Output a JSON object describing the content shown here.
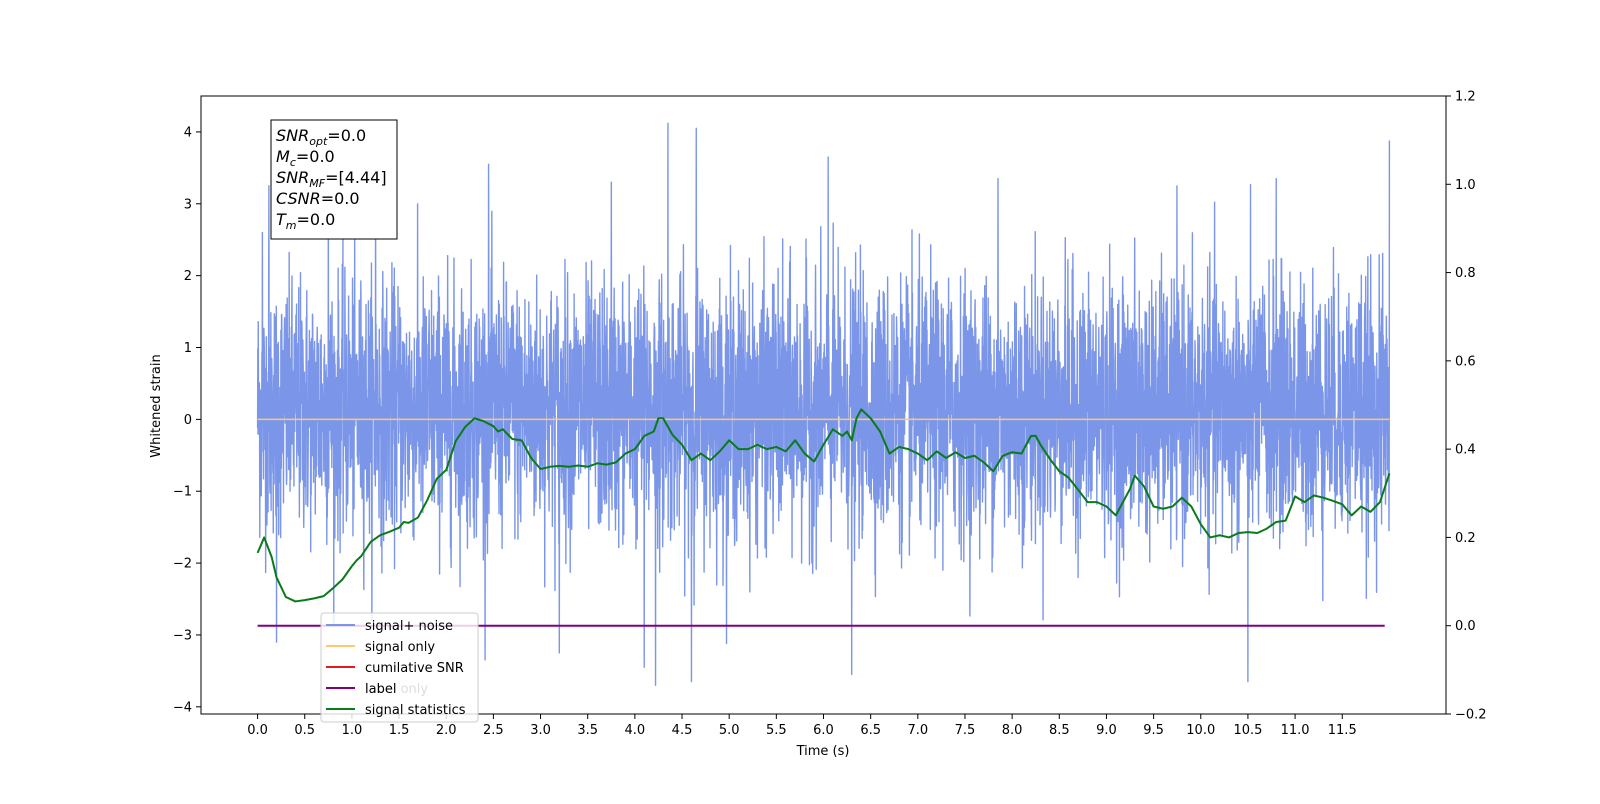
{
  "chart_data": {
    "type": "line",
    "xlabel": "Time (s)",
    "ylabel": "Whitened strain",
    "xlim": [
      -0.6,
      12.6
    ],
    "ylim": [
      -4.1,
      4.5
    ],
    "y2lim": [
      -0.2,
      1.2
    ],
    "x_ticks": [
      0.0,
      0.5,
      1.0,
      1.5,
      2.0,
      2.5,
      3.0,
      3.5,
      4.0,
      4.5,
      5.0,
      5.5,
      6.0,
      6.5,
      7.0,
      7.5,
      8.0,
      8.5,
      9.0,
      9.5,
      10.0,
      10.5,
      11.0,
      11.5
    ],
    "x_tick_labels": [
      "0.0",
      "0.5",
      "1.0",
      "1.5",
      "2.0",
      "2.5",
      "3.0",
      "3.5",
      "4.0",
      "4.5",
      "5.0",
      "5.5",
      "6.0",
      "6.5",
      "7.0",
      "7.5",
      "8.0",
      "8.5",
      "9.0",
      "9.5",
      "10.0",
      "10.5",
      "11.0",
      "11.5"
    ],
    "y_ticks": [
      -4,
      -3,
      -2,
      -1,
      0,
      1,
      2,
      3,
      4
    ],
    "y_tick_labels": [
      "−4",
      "−3",
      "−2",
      "−1",
      "0",
      "1",
      "2",
      "3",
      "4"
    ],
    "y2_ticks": [
      -0.2,
      0.0,
      0.2,
      0.4,
      0.6,
      0.8,
      1.0,
      1.2
    ],
    "y2_tick_labels": [
      "−0.2",
      "0.0",
      "0.2",
      "0.4",
      "0.6",
      "0.8",
      "1.0",
      "1.2"
    ],
    "grid": false,
    "legend_placement": "lower-left",
    "legend": [
      {
        "label": "signal+ noise",
        "color": "#7b96e8"
      },
      {
        "label": "signal only",
        "color": "#ffc870"
      },
      {
        "label": "cumilative SNR",
        "color": "#e41a1c"
      },
      {
        "label": "label",
        "color": "#800080"
      },
      {
        "label": "signal statistics",
        "color": "#0a7a1a"
      }
    ],
    "legend_overlap_text": "label only",
    "annotation_box": [
      {
        "name": "SNR",
        "sub": "opt",
        "value": "=0.0"
      },
      {
        "name": "M",
        "sub": "c",
        "value": "=0.0"
      },
      {
        "name": "SNR",
        "sub": "MF",
        "value": "=[4.44]"
      },
      {
        "name": "CSNR",
        "sub": "",
        "value": "=0.0"
      },
      {
        "name": "T",
        "sub": "m",
        "value": "=0.0"
      }
    ],
    "series": [
      {
        "name": "signal+ noise",
        "axis": "left",
        "color": "#7b96e8",
        "x_range": [
          0.0,
          12.0
        ],
        "amplitude_envelope": {
          "typical_min": -2.0,
          "typical_max": 2.0,
          "peak_max": 4.12,
          "peak_min": -3.7
        },
        "peaks": [
          [
            0.05,
            2.6
          ],
          [
            0.12,
            3.25
          ],
          [
            0.2,
            -3.1
          ],
          [
            0.75,
            3.3
          ],
          [
            1.25,
            3.55
          ],
          [
            2.45,
            3.55
          ],
          [
            3.2,
            -3.25
          ],
          [
            3.75,
            3.3
          ],
          [
            4.1,
            -3.45
          ],
          [
            4.22,
            -3.7
          ],
          [
            4.35,
            4.12
          ],
          [
            4.65,
            4.05
          ],
          [
            4.6,
            -3.65
          ],
          [
            6.05,
            3.65
          ],
          [
            6.3,
            -3.55
          ],
          [
            7.85,
            3.35
          ],
          [
            10.5,
            -3.65
          ],
          [
            10.8,
            3.35
          ],
          [
            12.0,
            3.88
          ]
        ]
      },
      {
        "name": "signal only",
        "axis": "left",
        "color": "#ffc870",
        "x": [
          0.0,
          12.0
        ],
        "values": [
          0.0,
          0.0
        ]
      },
      {
        "name": "label",
        "axis": "right",
        "color": "#800080",
        "x": [
          0.0,
          11.95
        ],
        "values": [
          0.0,
          0.0
        ]
      },
      {
        "name": "signal statistics",
        "axis": "right",
        "color": "#0a7a1a",
        "x": [
          0.0,
          0.07,
          0.15,
          0.2,
          0.3,
          0.4,
          0.5,
          0.6,
          0.7,
          0.8,
          0.9,
          1.0,
          1.05,
          1.1,
          1.2,
          1.3,
          1.4,
          1.5,
          1.55,
          1.6,
          1.7,
          1.8,
          1.9,
          2.0,
          2.1,
          2.2,
          2.3,
          2.4,
          2.5,
          2.55,
          2.6,
          2.7,
          2.8,
          2.9,
          3.0,
          3.1,
          3.2,
          3.3,
          3.4,
          3.5,
          3.6,
          3.7,
          3.8,
          3.9,
          4.0,
          4.1,
          4.2,
          4.25,
          4.3,
          4.4,
          4.5,
          4.6,
          4.7,
          4.8,
          4.9,
          5.0,
          5.1,
          5.2,
          5.3,
          5.4,
          5.5,
          5.6,
          5.7,
          5.8,
          5.9,
          6.0,
          6.1,
          6.2,
          6.25,
          6.3,
          6.35,
          6.4,
          6.5,
          6.6,
          6.7,
          6.8,
          6.9,
          7.0,
          7.1,
          7.2,
          7.3,
          7.4,
          7.5,
          7.6,
          7.7,
          7.8,
          7.9,
          8.0,
          8.1,
          8.2,
          8.25,
          8.3,
          8.4,
          8.5,
          8.6,
          8.7,
          8.8,
          8.9,
          9.0,
          9.1,
          9.2,
          9.25,
          9.3,
          9.4,
          9.5,
          9.6,
          9.7,
          9.8,
          9.9,
          10.0,
          10.1,
          10.2,
          10.3,
          10.4,
          10.5,
          10.6,
          10.7,
          10.8,
          10.9,
          11.0,
          11.1,
          11.2,
          11.3,
          11.4,
          11.5,
          11.6,
          11.7,
          11.8,
          11.9,
          12.0
        ],
        "values": [
          0.165,
          0.2,
          0.155,
          0.11,
          0.065,
          0.055,
          0.058,
          0.062,
          0.067,
          0.085,
          0.105,
          0.135,
          0.148,
          0.158,
          0.19,
          0.205,
          0.213,
          0.222,
          0.235,
          0.233,
          0.245,
          0.285,
          0.333,
          0.353,
          0.418,
          0.45,
          0.47,
          0.463,
          0.452,
          0.44,
          0.445,
          0.423,
          0.42,
          0.38,
          0.355,
          0.36,
          0.362,
          0.36,
          0.363,
          0.36,
          0.368,
          0.365,
          0.37,
          0.39,
          0.4,
          0.43,
          0.44,
          0.47,
          0.47,
          0.432,
          0.41,
          0.375,
          0.39,
          0.375,
          0.395,
          0.42,
          0.4,
          0.4,
          0.41,
          0.4,
          0.405,
          0.395,
          0.42,
          0.39,
          0.372,
          0.41,
          0.445,
          0.43,
          0.44,
          0.42,
          0.47,
          0.49,
          0.47,
          0.44,
          0.39,
          0.405,
          0.4,
          0.39,
          0.375,
          0.395,
          0.38,
          0.393,
          0.38,
          0.385,
          0.37,
          0.35,
          0.385,
          0.393,
          0.39,
          0.43,
          0.43,
          0.41,
          0.378,
          0.35,
          0.335,
          0.308,
          0.28,
          0.28,
          0.27,
          0.25,
          0.29,
          0.31,
          0.34,
          0.315,
          0.27,
          0.265,
          0.27,
          0.29,
          0.27,
          0.23,
          0.2,
          0.205,
          0.2,
          0.21,
          0.212,
          0.21,
          0.22,
          0.235,
          0.238,
          0.293,
          0.28,
          0.295,
          0.29,
          0.283,
          0.275,
          0.25,
          0.27,
          0.258,
          0.28,
          0.345
        ]
      }
    ]
  }
}
